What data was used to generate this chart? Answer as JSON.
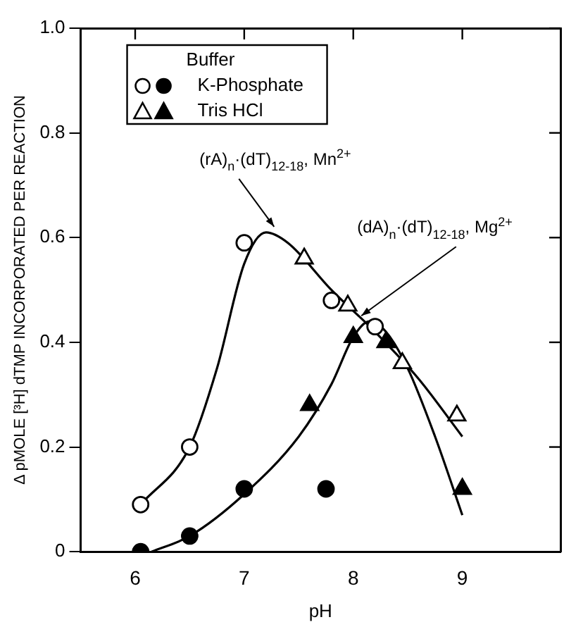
{
  "chart_data": {
    "type": "scatter",
    "xlabel": "pH",
    "ylabel": "Δ pMOLE [³H] dTMP INCORPORATED PER REACTION",
    "legend_title": "Buffer",
    "legend": "top left",
    "grid": false,
    "xlim": [
      5.5,
      9.9
    ],
    "xticks": [
      6,
      7,
      8,
      9
    ],
    "ylim": [
      0,
      1
    ],
    "yticks": [
      0,
      0.2,
      0.4,
      0.6,
      0.8,
      {
        "value": 1,
        "label": "1.0"
      }
    ],
    "series": [
      {
        "marker": "circle",
        "color": "#ffffff",
        "x": [
          6.05,
          6.5,
          7.0,
          7.8,
          8.2
        ],
        "values": [
          0.09,
          0.2,
          0.59,
          0.48,
          0.43
        ]
      },
      {
        "name": "K-Phosphate",
        "marker": "circle",
        "color": "#000000",
        "x": [
          6.05,
          6.5,
          7.0,
          7.75
        ],
        "values": [
          0.0,
          0.03,
          0.12,
          0.12
        ]
      },
      {
        "marker": "triangle",
        "color": "#ffffff",
        "x": [
          7.55,
          7.95,
          8.45,
          8.95
        ],
        "values": [
          0.56,
          0.47,
          0.36,
          0.26
        ]
      },
      {
        "name": "Tris HCl",
        "marker": "triangle",
        "color": "#000000",
        "x": [
          7.6,
          8.0,
          8.3,
          9.0
        ],
        "values": [
          0.28,
          0.41,
          0.4,
          0.12
        ]
      },
      {
        "type": "line",
        "marker": "none",
        "color": "#000000",
        "x": [
          6.05,
          6.5,
          6.75,
          7.0,
          7.2,
          7.4,
          7.8,
          8.2,
          8.6,
          9.0
        ],
        "values": [
          0.09,
          0.2,
          0.35,
          0.55,
          0.61,
          0.59,
          0.5,
          0.42,
          0.33,
          0.22
        ]
      },
      {
        "type": "line",
        "marker": "none",
        "color": "#000000",
        "x": [
          6.15,
          6.5,
          7.0,
          7.5,
          7.8,
          8.0,
          8.15,
          8.3,
          8.5,
          8.75,
          9.0
        ],
        "values": [
          0.0,
          0.03,
          0.11,
          0.22,
          0.32,
          0.41,
          0.44,
          0.42,
          0.35,
          0.22,
          0.07
        ]
      }
    ],
    "annotations": [
      {
        "text": "(rA)$_{n}$·(dT)$_{12-18}$, Mn$^{2+}$",
        "x": 7.3,
        "y": 0.61
      },
      {
        "text": "(dA)$_{n}$·(dT)$_{12-18}$, Mg$^{2+}$",
        "x": 8.1,
        "y": 0.44
      }
    ]
  }
}
